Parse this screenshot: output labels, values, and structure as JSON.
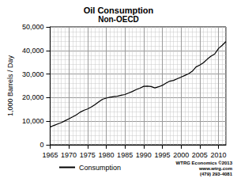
{
  "chart_data": {
    "type": "line",
    "title": "Oil Consumption",
    "subtitle": "Non-OECD",
    "y_label": "1,000 Barrels / Day",
    "x": [
      1965,
      1966,
      1967,
      1968,
      1969,
      1970,
      1971,
      1972,
      1973,
      1974,
      1975,
      1976,
      1977,
      1978,
      1979,
      1980,
      1981,
      1982,
      1983,
      1984,
      1985,
      1986,
      1987,
      1988,
      1989,
      1990,
      1991,
      1992,
      1993,
      1994,
      1995,
      1996,
      1997,
      1998,
      1999,
      2000,
      2001,
      2002,
      2003,
      2004,
      2005,
      2006,
      2007,
      2008,
      2009,
      2010,
      2011,
      2012
    ],
    "series": [
      {
        "name": "Consumption",
        "color": "#000000",
        "values": [
          7500,
          8200,
          8800,
          9400,
          10200,
          11000,
          11800,
          12700,
          13800,
          14600,
          15200,
          16000,
          17000,
          18200,
          19300,
          19800,
          20200,
          20400,
          20600,
          21000,
          21300,
          22000,
          22600,
          23400,
          24000,
          24800,
          24900,
          24700,
          24100,
          24600,
          25200,
          26200,
          27000,
          27300,
          28000,
          28700,
          29400,
          30100,
          31200,
          33000,
          33800,
          34800,
          36300,
          37600,
          38500,
          40800,
          42200,
          43800
        ]
      }
    ],
    "xlim": [
      1965,
      2012
    ],
    "xticks": [
      1965,
      1970,
      1975,
      1980,
      1985,
      1990,
      1995,
      2000,
      2005,
      2010
    ],
    "ylim": [
      0,
      50000
    ],
    "yticks": [
      0,
      {
        "value": 10000,
        "label": "10,000"
      },
      {
        "value": 20000,
        "label": "20,000"
      },
      {
        "value": 30000,
        "label": "30,000"
      },
      {
        "value": 40000,
        "label": "40,000"
      },
      {
        "value": 50000,
        "label": "50,000"
      }
    ],
    "annotations": [
      "WTRG Economics ©2013",
      "www.wtrg.com",
      "(479) 293-4081"
    ],
    "grid": true,
    "legend": "bottom",
    "line_style": "solid"
  }
}
